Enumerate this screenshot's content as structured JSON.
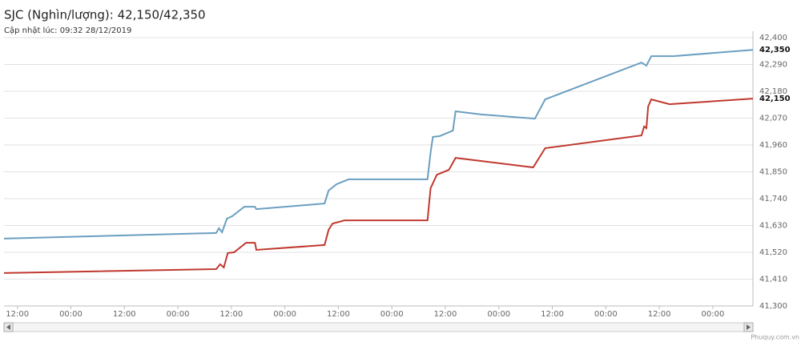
{
  "chart_data": {
    "type": "line",
    "title": "SJC (Nghìn/lượng): 42,150/42,350",
    "subtitle": "Cập nhật lúc: 09:32 28/12/2019",
    "watermark": "Phuquy.com.vn",
    "xlim": [
      -3,
      165
    ],
    "xticks": [
      {
        "value": 0,
        "label": "12:00"
      },
      {
        "value": 12,
        "label": "00:00"
      },
      {
        "value": 24,
        "label": "12:00"
      },
      {
        "value": 36,
        "label": "00:00"
      },
      {
        "value": 48,
        "label": "12:00"
      },
      {
        "value": 60,
        "label": "00:00"
      },
      {
        "value": 72,
        "label": "12:00"
      },
      {
        "value": 84,
        "label": "00:00"
      },
      {
        "value": 96,
        "label": "12:00"
      },
      {
        "value": 108,
        "label": "00:00"
      },
      {
        "value": 120,
        "label": "12:00"
      },
      {
        "value": 132,
        "label": "00:00"
      },
      {
        "value": 144,
        "label": "12:00"
      },
      {
        "value": 156,
        "label": "00:00"
      }
    ],
    "ylim": [
      41300,
      42400
    ],
    "yticks": [
      {
        "value": 41300,
        "label": "41,300"
      },
      {
        "value": 41410,
        "label": "41,410"
      },
      {
        "value": 41520,
        "label": "41,520"
      },
      {
        "value": 41630,
        "label": "41,630"
      },
      {
        "value": 41740,
        "label": "41,740"
      },
      {
        "value": 41850,
        "label": "41,850"
      },
      {
        "value": 41960,
        "label": "41,960"
      },
      {
        "value": 42070,
        "label": "42,070"
      },
      {
        "value": 42180,
        "label": "42,180"
      },
      {
        "value": 42290,
        "label": "42,290"
      },
      {
        "value": 42400,
        "label": "42,400"
      }
    ],
    "grid": true,
    "series": [
      {
        "color": "#6a9fc0",
        "current_label": "42,350",
        "x": [
          -3,
          44.6,
          45.2,
          45.9,
          47.0,
          48.2,
          50.9,
          53.3,
          53.6,
          68.9,
          69.8,
          71.6,
          74.3,
          92.0,
          92.7,
          93.2,
          94.7,
          97.7,
          98.3,
          104.0,
          116.1,
          118.4,
          140.0,
          141.1,
          142.2,
          147.2,
          165
        ],
        "values": [
          41576,
          41599,
          41619,
          41602,
          41658,
          41668,
          41707,
          41707,
          41697,
          41720,
          41773,
          41799,
          41819,
          41819,
          41930,
          41993,
          41996,
          42019,
          42098,
          42085,
          42068,
          42147,
          42298,
          42285,
          42324,
          42324,
          42350
        ]
      },
      {
        "color": "#c0392f",
        "current_label": "42,150",
        "x": [
          -3,
          44.6,
          45.5,
          46.3,
          47.2,
          48.6,
          51.3,
          53.3,
          53.6,
          68.9,
          69.8,
          70.7,
          73.4,
          92.0,
          92.7,
          94.1,
          96.8,
          98.3,
          115.7,
          118.4,
          140.0,
          140.6,
          141.1,
          141.5,
          142.2,
          146.3,
          165
        ],
        "values": [
          41435,
          41451,
          41471,
          41458,
          41517,
          41520,
          41559,
          41559,
          41530,
          41550,
          41612,
          41638,
          41651,
          41651,
          41783,
          41838,
          41858,
          41907,
          41868,
          41947,
          41999,
          42036,
          42029,
          42118,
          42147,
          42127,
          42150
        ]
      }
    ]
  }
}
